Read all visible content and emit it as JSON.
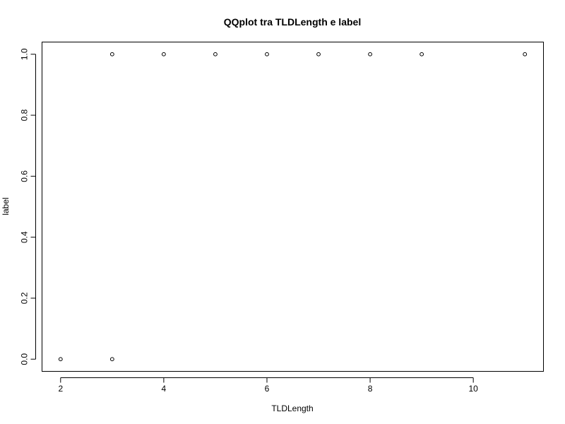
{
  "chart_data": {
    "type": "scatter",
    "title": "QQplot tra TLDLength e label",
    "xlabel": "TLDLength",
    "ylabel": "label",
    "xlim": [
      1.64,
      11.36
    ],
    "ylim": [
      -0.04,
      1.04
    ],
    "x_ticks": [
      2,
      4,
      6,
      8,
      10
    ],
    "x_tick_labels": [
      "2",
      "4",
      "6",
      "8",
      "10"
    ],
    "y_ticks": [
      0.0,
      0.2,
      0.4,
      0.6,
      0.8,
      1.0
    ],
    "y_tick_labels": [
      "0.0",
      "0.2",
      "0.4",
      "0.6",
      "0.8",
      "1.0"
    ],
    "grid": false,
    "points": [
      {
        "x": 2,
        "y": 0
      },
      {
        "x": 3,
        "y": 0
      },
      {
        "x": 3,
        "y": 1
      },
      {
        "x": 4,
        "y": 1
      },
      {
        "x": 5,
        "y": 1
      },
      {
        "x": 6,
        "y": 1
      },
      {
        "x": 7,
        "y": 1
      },
      {
        "x": 8,
        "y": 1
      },
      {
        "x": 9,
        "y": 1
      },
      {
        "x": 11,
        "y": 1
      }
    ]
  }
}
